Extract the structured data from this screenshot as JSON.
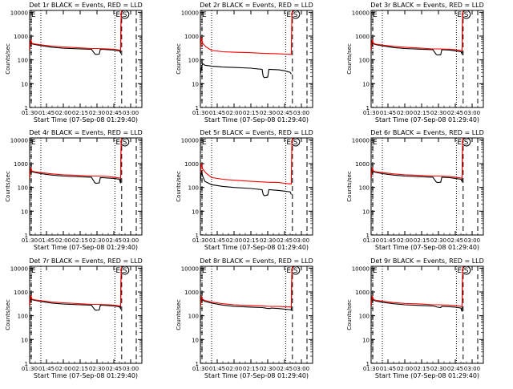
{
  "chart_data": {
    "type": "line",
    "xlabel": "Start Time (07-Sep-08 01:29:40)",
    "ylabel": "Counts/sec",
    "x_tick_labels": [
      "01:30",
      "01:45",
      "02:00",
      "02:15",
      "02:30",
      "02:45",
      "03:00"
    ],
    "x_ticks_min": [
      0,
      15,
      30,
      45,
      60,
      75,
      90
    ],
    "xlim_min": [
      0,
      100
    ],
    "ylim": [
      1,
      12000
    ],
    "y_scale": "log",
    "y_tick_labels": [
      "1",
      "10",
      "100",
      "1000",
      "10000"
    ],
    "y_ticks": [
      1,
      10,
      100,
      1000,
      10000
    ],
    "colors": {
      "events": "#000000",
      "lld": "#ff0000"
    },
    "markers": {
      "dotted_min": [
        10,
        76
      ],
      "dashed_min": [
        82,
        95
      ],
      "letters": [
        "E",
        "S"
      ]
    },
    "panels": [
      {
        "title": "Det 1r BLACK = Events, RED = LLD",
        "series": [
          {
            "key": "events",
            "x": [
              0,
              1,
              2,
              4,
              10,
              20,
              30,
              45,
              55,
              58,
              59,
              62,
              63,
              70,
              75,
              80,
              81,
              81.5,
              82
            ],
            "values": [
              230,
              700,
              480,
              450,
              400,
              340,
              310,
              290,
              280,
              180,
              170,
              175,
              280,
              270,
              260,
              240,
              200,
              8000,
              12000
            ]
          },
          {
            "key": "lld",
            "x": [
              0,
              1,
              2,
              4,
              10,
              20,
              30,
              45,
              55,
              60,
              70,
              75,
              80,
              81,
              81.5,
              82
            ],
            "values": [
              250,
              720,
              500,
              470,
              430,
              380,
              350,
              320,
              300,
              300,
              290,
              280,
              260,
              250,
              8000,
              12000
            ]
          }
        ]
      },
      {
        "title": "Det 2r BLACK = Events, RED = LLD",
        "series": [
          {
            "key": "events",
            "x": [
              0,
              1,
              2,
              4,
              10,
              20,
              30,
              45,
              55,
              56,
              57,
              60,
              61,
              70,
              75,
              80,
              81
            ],
            "values": [
              25,
              50,
              70,
              60,
              55,
              50,
              48,
              45,
              40,
              20,
              18,
              19,
              40,
              38,
              35,
              30,
              25
            ]
          },
          {
            "key": "lld",
            "x": [
              0,
              1,
              2,
              5,
              10,
              20,
              30,
              45,
              55,
              60,
              70,
              75,
              80,
              81,
              81.5,
              82
            ],
            "values": [
              300,
              900,
              500,
              350,
              250,
              220,
              210,
              200,
              190,
              185,
              180,
              175,
              170,
              170,
              8000,
              12000
            ]
          }
        ]
      },
      {
        "title": "Det 3r BLACK = Events, RED = LLD",
        "series": [
          {
            "key": "events",
            "x": [
              0,
              1,
              2,
              4,
              10,
              20,
              30,
              45,
              55,
              58,
              59,
              62,
              63,
              70,
              75,
              80,
              81,
              81.5,
              82
            ],
            "values": [
              230,
              700,
              480,
              440,
              390,
              330,
              300,
              280,
              270,
              170,
              160,
              165,
              270,
              260,
              240,
              220,
              180,
              8000,
              12000
            ]
          },
          {
            "key": "lld",
            "x": [
              0,
              1,
              2,
              4,
              10,
              20,
              30,
              45,
              55,
              60,
              70,
              75,
              80,
              81,
              81.5,
              82
            ],
            "values": [
              250,
              720,
              500,
              460,
              420,
              370,
              340,
              310,
              290,
              290,
              280,
              270,
              250,
              240,
              8000,
              12000
            ]
          }
        ]
      },
      {
        "title": "Det 4r BLACK = Events, RED = LLD",
        "series": [
          {
            "key": "events",
            "x": [
              0,
              1,
              2,
              4,
              10,
              20,
              30,
              45,
              55,
              58,
              59,
              62,
              63,
              70,
              75,
              80,
              81,
              81.5,
              82
            ],
            "values": [
              220,
              650,
              460,
              430,
              380,
              330,
              300,
              280,
              270,
              160,
              150,
              155,
              260,
              250,
              240,
              220,
              150,
              8000,
              12000
            ]
          },
          {
            "key": "lld",
            "x": [
              0,
              1,
              2,
              4,
              10,
              20,
              30,
              45,
              55,
              60,
              70,
              75,
              80,
              81,
              81.5,
              82
            ],
            "values": [
              240,
              680,
              490,
              460,
              420,
              370,
              340,
              320,
              300,
              300,
              290,
              270,
              250,
              240,
              8000,
              12000
            ]
          }
        ]
      },
      {
        "title": "Det 5r BLACK = Events, RED = LLD",
        "series": [
          {
            "key": "events",
            "x": [
              0,
              1,
              2,
              4,
              10,
              20,
              30,
              45,
              55,
              56,
              57,
              60,
              61,
              70,
              75,
              80,
              81
            ],
            "values": [
              180,
              500,
              300,
              180,
              130,
              110,
              100,
              90,
              80,
              50,
              45,
              48,
              80,
              75,
              70,
              65,
              50
            ]
          },
          {
            "key": "lld",
            "x": [
              0,
              1,
              2,
              5,
              10,
              20,
              30,
              45,
              55,
              60,
              70,
              75,
              80,
              81,
              81.5,
              82
            ],
            "values": [
              400,
              1000,
              600,
              400,
              260,
              220,
              200,
              180,
              170,
              165,
              160,
              150,
              140,
              140,
              8000,
              12000
            ]
          }
        ]
      },
      {
        "title": "Det 6r BLACK = Events, RED = LLD",
        "series": [
          {
            "key": "events",
            "x": [
              0,
              1,
              2,
              4,
              10,
              20,
              30,
              45,
              55,
              58,
              59,
              62,
              63,
              70,
              75,
              80,
              81,
              81.5,
              82
            ],
            "values": [
              220,
              650,
              460,
              430,
              380,
              330,
              300,
              280,
              270,
              170,
              160,
              165,
              270,
              260,
              240,
              220,
              180,
              8000,
              12000
            ]
          },
          {
            "key": "lld",
            "x": [
              0,
              1,
              2,
              4,
              10,
              20,
              30,
              45,
              55,
              60,
              70,
              75,
              80,
              81,
              81.5,
              82
            ],
            "values": [
              240,
              680,
              490,
              460,
              420,
              370,
              340,
              320,
              300,
              300,
              290,
              270,
              250,
              240,
              8000,
              12000
            ]
          }
        ]
      },
      {
        "title": "Det 7r BLACK = Events, RED = LLD",
        "series": [
          {
            "key": "events",
            "x": [
              0,
              1,
              2,
              4,
              10,
              20,
              30,
              45,
              55,
              58,
              59,
              62,
              63,
              70,
              75,
              80,
              81,
              81.5,
              82
            ],
            "values": [
              230,
              700,
              480,
              450,
              400,
              340,
              310,
              290,
              280,
              180,
              170,
              175,
              280,
              270,
              260,
              240,
              200,
              8000,
              12000
            ]
          },
          {
            "key": "lld",
            "x": [
              0,
              1,
              2,
              4,
              10,
              20,
              30,
              45,
              55,
              60,
              70,
              75,
              80,
              81,
              81.5,
              82
            ],
            "values": [
              250,
              720,
              500,
              470,
              430,
              380,
              350,
              320,
              300,
              300,
              290,
              280,
              260,
              250,
              8000,
              12000
            ]
          }
        ]
      },
      {
        "title": "Det 8r BLACK = Events, RED = LLD",
        "series": [
          {
            "key": "events",
            "x": [
              0,
              1,
              2,
              4,
              10,
              20,
              30,
              45,
              55,
              58,
              59,
              62,
              63,
              70,
              75,
              80,
              81,
              81.5,
              82
            ],
            "values": [
              220,
              650,
              460,
              400,
              340,
              280,
              250,
              230,
              220,
              210,
              205,
              200,
              210,
              200,
              190,
              180,
              170,
              8000,
              12000
            ]
          },
          {
            "key": "lld",
            "x": [
              0,
              1,
              2,
              4,
              10,
              20,
              30,
              45,
              55,
              60,
              70,
              75,
              80,
              81,
              81.5,
              82
            ],
            "values": [
              240,
              680,
              490,
              440,
              380,
              320,
              290,
              270,
              260,
              250,
              245,
              240,
              235,
              230,
              8000,
              12000
            ]
          }
        ]
      },
      {
        "title": "Det 9r BLACK = Events, RED = LLD",
        "series": [
          {
            "key": "events",
            "x": [
              0,
              1,
              2,
              4,
              10,
              20,
              30,
              45,
              55,
              58,
              59,
              62,
              63,
              70,
              75,
              80,
              81,
              81.5,
              82
            ],
            "values": [
              220,
              650,
              460,
              420,
              370,
              320,
              290,
              270,
              260,
              240,
              230,
              220,
              250,
              240,
              230,
              210,
              150,
              8000,
              12000
            ]
          },
          {
            "key": "lld",
            "x": [
              0,
              1,
              2,
              4,
              10,
              20,
              30,
              45,
              55,
              60,
              70,
              75,
              80,
              81,
              81.5,
              82
            ],
            "values": [
              240,
              680,
              490,
              450,
              410,
              360,
              330,
              310,
              290,
              290,
              280,
              270,
              250,
              240,
              8000,
              12000
            ]
          }
        ]
      }
    ]
  }
}
